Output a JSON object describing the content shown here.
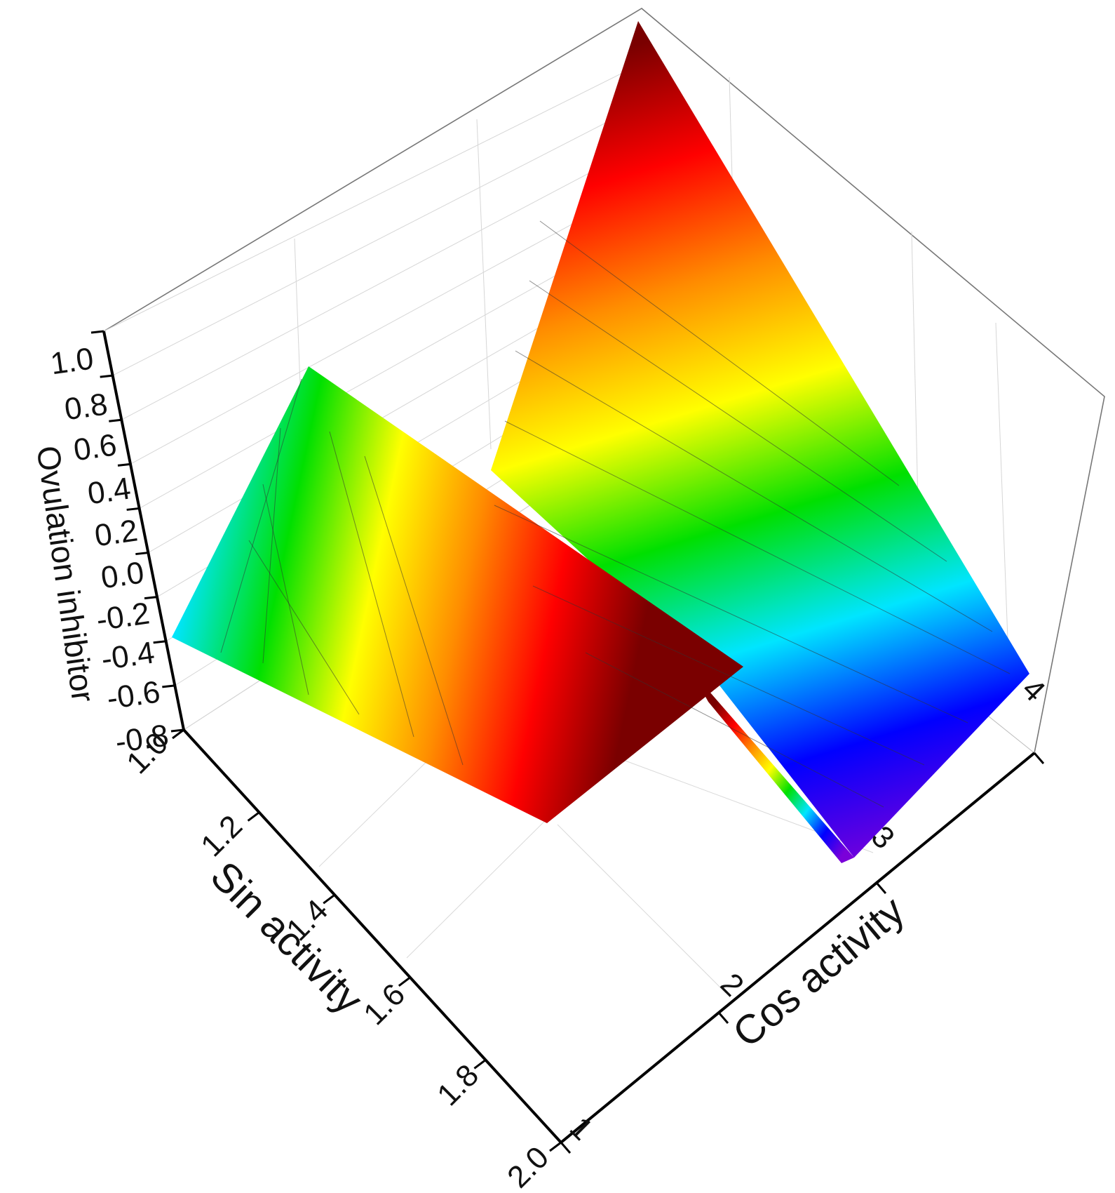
{
  "chart_data": {
    "type": "surface",
    "projection": "3d",
    "xlabel": "Sin activity",
    "ylabel": "Cos activity",
    "zlabel": "Ovulation inhibitor",
    "x_ticks": [
      "1.0",
      "1.2",
      "1.4",
      "1.6",
      "1.8",
      "2.0"
    ],
    "y_ticks": [
      "1",
      "2",
      "3",
      "4"
    ],
    "z_ticks": [
      "-0.8",
      "-0.6",
      "-0.4",
      "-0.2",
      "0.0",
      "0.2",
      "0.4",
      "0.6",
      "0.8",
      "1.0"
    ],
    "xlim": [
      1.0,
      2.0
    ],
    "ylim": [
      1,
      4
    ],
    "zlim": [
      -0.8,
      1.0
    ],
    "colormap": "rainbow",
    "colormap_stops": [
      "#7a00d9",
      "#0000ff",
      "#00e5ff",
      "#00e000",
      "#ffff00",
      "#ff8c00",
      "#ff0000",
      "#7a0000"
    ],
    "grid": true,
    "surface_points": [
      {
        "x": 1.0,
        "y": 1,
        "z": -0.43
      },
      {
        "x": 1.0,
        "y": 1.6,
        "z": 0.82
      },
      {
        "x": 1.0,
        "y": 2.8,
        "z": 0.67
      },
      {
        "x": 1.0,
        "y": 3.8,
        "z": 0.52
      },
      {
        "x": 1.0,
        "y": 4,
        "z": 0.72
      },
      {
        "x": 1.0,
        "y": 3.7,
        "z": 1.0
      },
      {
        "x": 1.0,
        "y": 2.3,
        "z": 1.0
      },
      {
        "x": 1.6,
        "y": 2.2,
        "z": 0.6
      },
      {
        "x": 2.0,
        "y": 3,
        "z": -0.8
      },
      {
        "x": 2.0,
        "y": 4,
        "z": 0.1
      }
    ]
  }
}
